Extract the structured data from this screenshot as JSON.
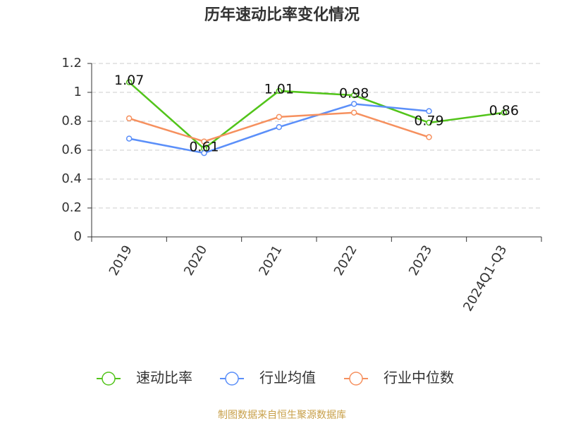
{
  "chart_data": {
    "type": "line",
    "title": "历年速动比率变化情况",
    "categories": [
      "2019",
      "2020",
      "2021",
      "2022",
      "2023",
      "2024Q1-Q3"
    ],
    "series": [
      {
        "name": "速动比率",
        "color": "#52c41a",
        "values": [
          1.07,
          0.61,
          1.01,
          0.98,
          0.79,
          0.86
        ],
        "data_labels": true
      },
      {
        "name": "行业均值",
        "color": "#5b8ff9",
        "values": [
          0.68,
          0.58,
          0.76,
          0.92,
          0.87,
          null
        ],
        "data_labels": false
      },
      {
        "name": "行业中位数",
        "color": "#f6905e",
        "values": [
          0.82,
          0.66,
          0.83,
          0.86,
          0.69,
          null
        ],
        "data_labels": false
      }
    ],
    "ylim": [
      0,
      1.2
    ],
    "yticks": [
      0,
      0.2,
      0.4,
      0.6,
      0.8,
      1,
      1.2
    ],
    "grid": true,
    "legend": "bottom",
    "source": "制图数据来自恒生聚源数据库"
  }
}
